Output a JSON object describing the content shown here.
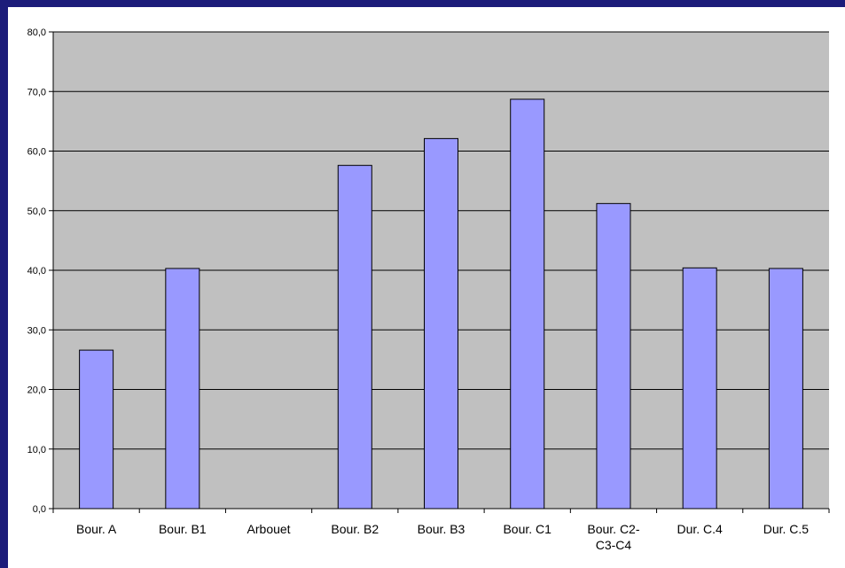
{
  "colors": {
    "plot_background": "#c0c0c0",
    "bar_fill": "#9999ff",
    "bar_stroke": "#000000",
    "gridline": "#000000",
    "frame_border": "#1c1c7a"
  },
  "chart_data": {
    "type": "bar",
    "title": "",
    "xlabel": "",
    "ylabel": "",
    "ylim": [
      0,
      80
    ],
    "yticks": [
      "0,0",
      "10,0",
      "20,0",
      "30,0",
      "40,0",
      "50,0",
      "60,0",
      "70,0",
      "80,0"
    ],
    "grid": true,
    "legend": "none",
    "categories": [
      [
        "Bour. A"
      ],
      [
        "Bour. B1"
      ],
      [
        "Arbouet"
      ],
      [
        "Bour. B2"
      ],
      [
        "Bour. B3"
      ],
      [
        "Bour. C1"
      ],
      [
        "Bour. C2-",
        "C3-C4"
      ],
      [
        "Dur. C.4"
      ],
      [
        "Dur. C.5"
      ]
    ],
    "values": [
      26.6,
      40.3,
      0,
      57.6,
      62.1,
      68.7,
      51.2,
      40.4,
      40.3
    ]
  }
}
